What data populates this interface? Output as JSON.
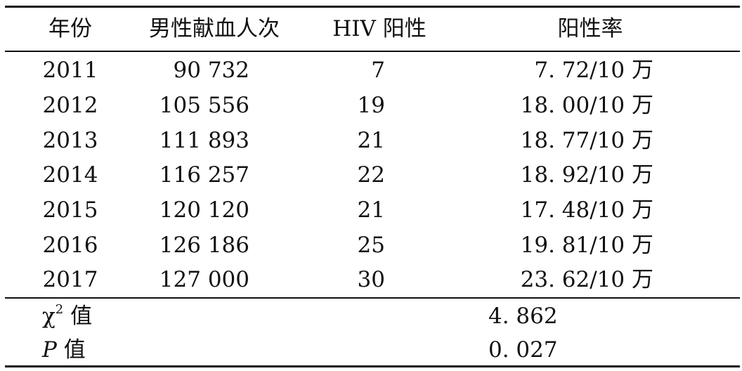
{
  "table": {
    "headers": {
      "year": "年份",
      "donations": "男性献血人次",
      "hiv_positive": "HIV 阳性",
      "positive_rate": "阳性率"
    },
    "rows": [
      {
        "year": "2011",
        "donations": "90 732",
        "hiv_positive": "7",
        "positive_rate": "7. 72/10 万"
      },
      {
        "year": "2012",
        "donations": "105 556",
        "hiv_positive": "19",
        "positive_rate": "18. 00/10 万"
      },
      {
        "year": "2013",
        "donations": "111 893",
        "hiv_positive": "21",
        "positive_rate": "18. 77/10 万"
      },
      {
        "year": "2014",
        "donations": "116 257",
        "hiv_positive": "22",
        "positive_rate": "18. 92/10 万"
      },
      {
        "year": "2015",
        "donations": "120 120",
        "hiv_positive": "21",
        "positive_rate": "17. 48/10 万"
      },
      {
        "year": "2016",
        "donations": "126 186",
        "hiv_positive": "25",
        "positive_rate": "19. 81/10 万"
      },
      {
        "year": "2017",
        "donations": "127 000",
        "hiv_positive": "30",
        "positive_rate": "23. 62/10 万"
      }
    ],
    "stats": {
      "chi_square": {
        "symbol": "χ",
        "superscript": "2",
        "suffix": "值",
        "value": "4. 862"
      },
      "p_value": {
        "symbol": "P",
        "suffix": "值",
        "value": "0. 027"
      }
    }
  }
}
